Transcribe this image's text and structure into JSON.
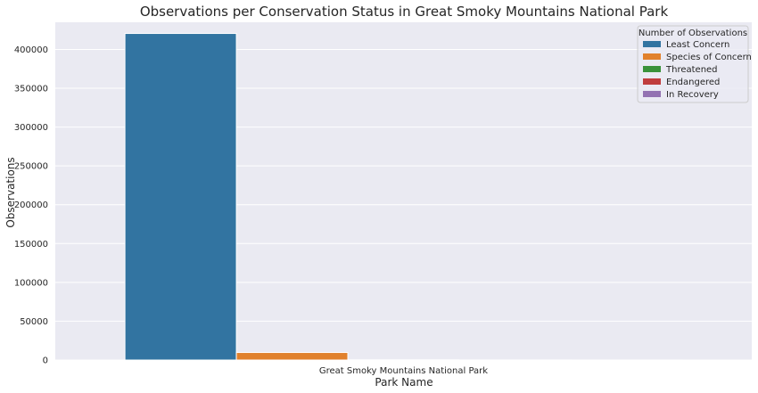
{
  "chart_data": {
    "type": "bar",
    "title": "Observations per Conservation Status in Great Smoky Mountains National Park",
    "xlabel": "Park Name",
    "ylabel": "Observations",
    "categories": [
      "Great Smoky Mountains National Park"
    ],
    "ylim": [
      0,
      435000
    ],
    "yticks": [
      "0",
      "50000",
      "100000",
      "150000",
      "200000",
      "250000",
      "300000",
      "350000",
      "400000"
    ],
    "grid": true,
    "legend": {
      "title": "Number of Observations",
      "position": "top-right"
    },
    "series": [
      {
        "name": "Least Concern",
        "values": [
          420600
        ],
        "color": "#3274a1"
      },
      {
        "name": "Species of Concern",
        "values": [
          9700
        ],
        "color": "#e1812c"
      },
      {
        "name": "Threatened",
        "values": [
          300
        ],
        "color": "#3a923a"
      },
      {
        "name": "Endangered",
        "values": [
          100
        ],
        "color": "#c03d3e"
      },
      {
        "name": "In Recovery",
        "values": [
          50
        ],
        "color": "#9372b2"
      }
    ],
    "style": {
      "background": "#eaeaf2",
      "gridline": "#ffffff"
    }
  }
}
